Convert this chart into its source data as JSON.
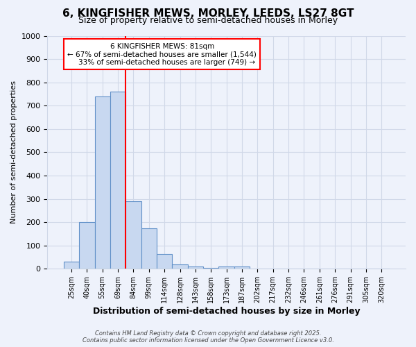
{
  "title_line1": "6, KINGFISHER MEWS, MORLEY, LEEDS, LS27 8GT",
  "title_line2": "Size of property relative to semi-detached houses in Morley",
  "xlabel": "Distribution of semi-detached houses by size in Morley",
  "ylabel": "Number of semi-detached properties",
  "bin_labels": [
    "25sqm",
    "40sqm",
    "55sqm",
    "69sqm",
    "84sqm",
    "99sqm",
    "114sqm",
    "128sqm",
    "143sqm",
    "158sqm",
    "173sqm",
    "187sqm",
    "202sqm",
    "217sqm",
    "232sqm",
    "246sqm",
    "261sqm",
    "276sqm",
    "291sqm",
    "305sqm",
    "320sqm"
  ],
  "bar_values": [
    30,
    200,
    740,
    760,
    290,
    175,
    65,
    20,
    10,
    5,
    10,
    10,
    0,
    0,
    0,
    0,
    0,
    0,
    0,
    0,
    0
  ],
  "bar_color": "#c8d8f0",
  "bar_edge_color": "#6090c8",
  "red_line_color": "#ff0000",
  "annotation_text_line1": "6 KINGFISHER MEWS: 81sqm",
  "annotation_text_line2": "← 67% of semi-detached houses are smaller (1,544)",
  "annotation_text_line3": "    33% of semi-detached houses are larger (749) →",
  "annotation_box_color": "#ffffff",
  "annotation_box_edge_color": "#ff0000",
  "ylim": [
    0,
    1000
  ],
  "yticks": [
    0,
    100,
    200,
    300,
    400,
    500,
    600,
    700,
    800,
    900,
    1000
  ],
  "grid_color": "#d0d8e8",
  "background_color": "#eef2fb",
  "footer_line1": "Contains HM Land Registry data © Crown copyright and database right 2025.",
  "footer_line2": "Contains public sector information licensed under the Open Government Licence v3.0."
}
